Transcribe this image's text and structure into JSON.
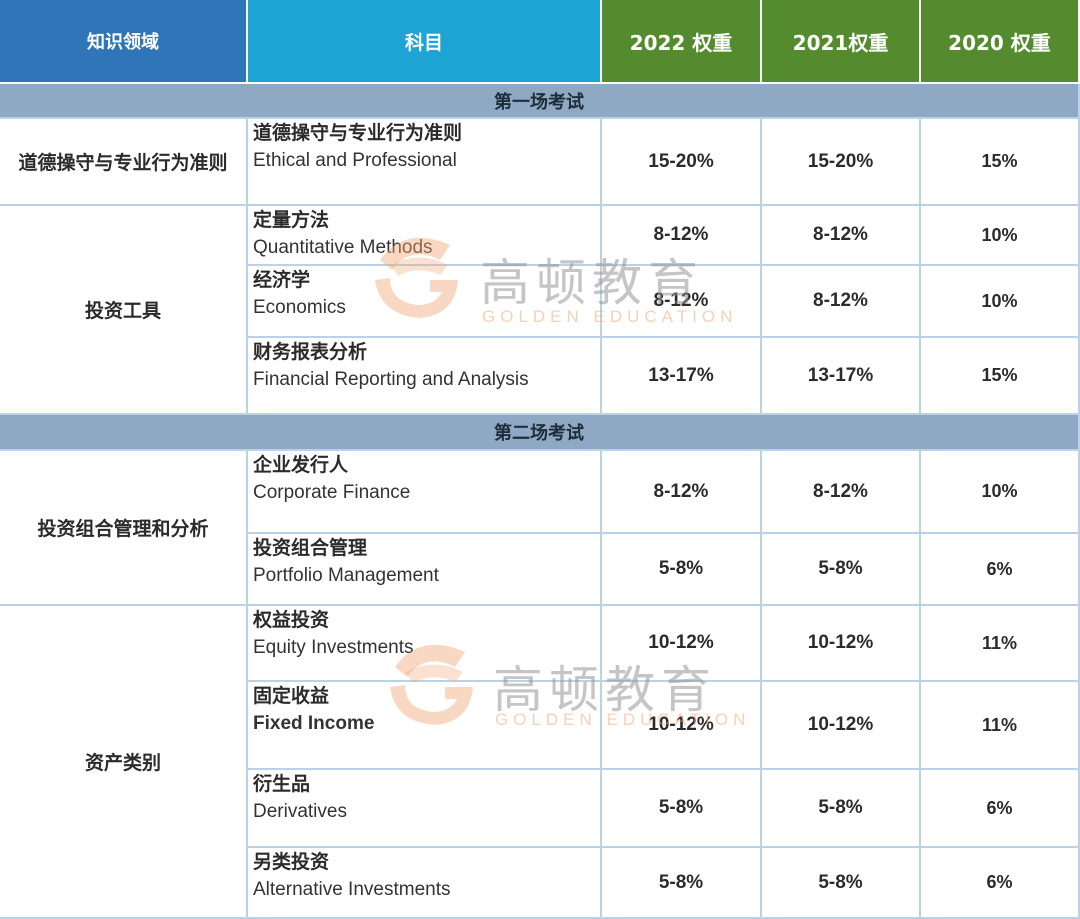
{
  "header": {
    "area": "知识领域",
    "subject": "科目",
    "w2022": "2022 权重",
    "w2021": "2021权重",
    "w2020": "2020 权重"
  },
  "sections": [
    "第一场考试",
    "第二场考试"
  ],
  "areas": [
    "道德操守与专业行为准则",
    "投资工具",
    "投资组合管理和分析",
    "资产类别"
  ],
  "rows": [
    {
      "cn": "道德操守与专业行为准则",
      "en": "Ethical and Professional",
      "w2022": "15-20%",
      "w2021": "15-20%",
      "w2020": "15%"
    },
    {
      "cn": "定量方法",
      "en": "Quantitative Methods",
      "w2022": "8-12%",
      "w2021": "8-12%",
      "w2020": "10%"
    },
    {
      "cn": "经济学",
      "en": "Economics",
      "w2022": "8-12%",
      "w2021": "8-12%",
      "w2020": "10%"
    },
    {
      "cn": "财务报表分析",
      "en": "Financial Reporting and Analysis",
      "w2022": "13-17%",
      "w2021": "13-17%",
      "w2020": "15%"
    },
    {
      "cn": "企业发行人",
      "en": "Corporate Finance",
      "w2022": "8-12%",
      "w2021": "8-12%",
      "w2020": "10%"
    },
    {
      "cn": "投资组合管理",
      "en": "Portfolio Management",
      "w2022": "5-8%",
      "w2021": "5-8%",
      "w2020": "6%"
    },
    {
      "cn": "权益投资",
      "en": "Equity Investments",
      "w2022": "10-12%",
      "w2021": "10-12%",
      "w2020": "11%"
    },
    {
      "cn": "固定收益",
      "en": "Fixed Income",
      "w2022": "10-12%",
      "w2021": "10-12%",
      "w2020": "11%"
    },
    {
      "cn": "衍生品",
      "en": "Derivatives",
      "w2022": "5-8%",
      "w2021": "5-8%",
      "w2020": "6%"
    },
    {
      "cn": "另类投资",
      "en": "Alternative Investments",
      "w2022": "5-8%",
      "w2021": "5-8%",
      "w2020": "6%"
    }
  ],
  "watermark": {
    "cn": "高顿教育",
    "en": "GOLDEN EDUCATION",
    "color": "#f0a878"
  }
}
